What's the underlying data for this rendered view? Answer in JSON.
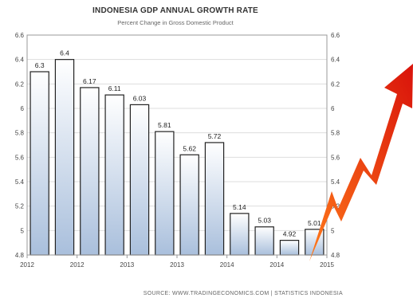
{
  "chart_data": {
    "type": "bar",
    "title": "INDONESIA GDP ANNUAL GROWTH RATE",
    "subtitle": "Percent Change in Gross Domestic Product",
    "source": "SOURCE: WWW.TRADINGECONOMICS.COM  |  STATISTICS INDONESIA",
    "values": [
      6.3,
      6.4,
      6.17,
      6.11,
      6.03,
      5.81,
      5.62,
      5.72,
      5.14,
      5.03,
      4.92,
      5.01
    ],
    "data_labels": [
      "6.3",
      "6.4",
      "6.17",
      "6.11",
      "6.03",
      "5.81",
      "5.62",
      "5.72",
      "5.14",
      "5.03",
      "4.92",
      "5.01"
    ],
    "x_tick_labels": [
      "2012",
      "2012",
      "2013",
      "2013",
      "2014",
      "2014",
      "2015"
    ],
    "x_tick_positions": [
      0,
      2,
      4,
      6,
      8,
      10,
      12
    ],
    "y_tick_labels": [
      "4.8",
      "5",
      "5.2",
      "5.4",
      "5.6",
      "5.8",
      "6",
      "6.2",
      "6.4",
      "6.6"
    ],
    "ylim": [
      4.8,
      6.6
    ],
    "y_ticks": [
      4.8,
      5.0,
      5.2,
      5.4,
      5.6,
      5.8,
      6.0,
      6.2,
      6.4,
      6.6
    ],
    "grid": true,
    "colors": {
      "bar_top": "#ffffff",
      "bar_bottom": "#a9bfdc",
      "bar_stroke": "#222222",
      "grid": "#dddddd",
      "arrow_light": "#ff7a1a",
      "arrow_dark": "#d9130b"
    }
  }
}
